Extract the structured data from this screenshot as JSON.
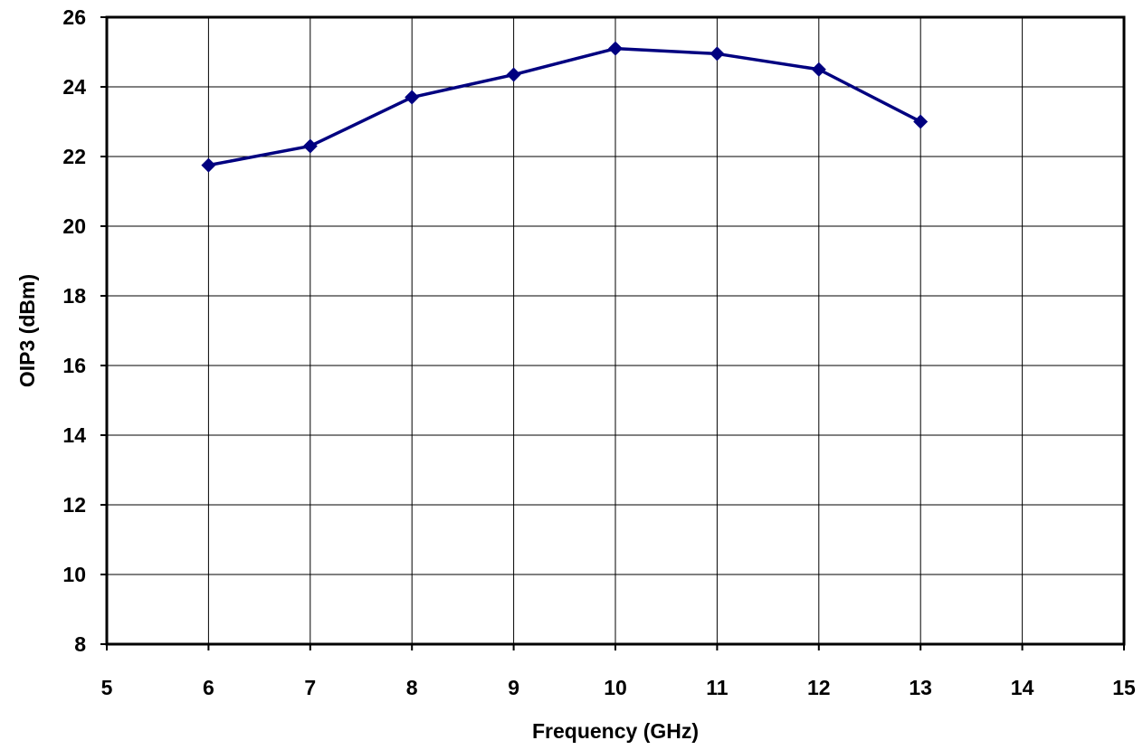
{
  "chart_data": {
    "type": "line",
    "title": "",
    "xlabel": "Frequency (GHz)",
    "ylabel": "OIP3 (dBm)",
    "xlim": [
      5,
      15
    ],
    "ylim": [
      8,
      26
    ],
    "xticks": [
      5,
      6,
      7,
      8,
      9,
      10,
      11,
      12,
      13,
      14,
      15
    ],
    "yticks": [
      8,
      10,
      12,
      14,
      16,
      18,
      20,
      22,
      24,
      26
    ],
    "grid": true,
    "legend": "none",
    "series": [
      {
        "x": [
          6,
          7,
          8,
          9,
          10,
          11,
          12,
          13
        ],
        "y": [
          21.75,
          22.3,
          23.7,
          24.35,
          25.1,
          24.95,
          24.5,
          23.0
        ],
        "color": "#000080",
        "marker": "diamond"
      }
    ]
  }
}
